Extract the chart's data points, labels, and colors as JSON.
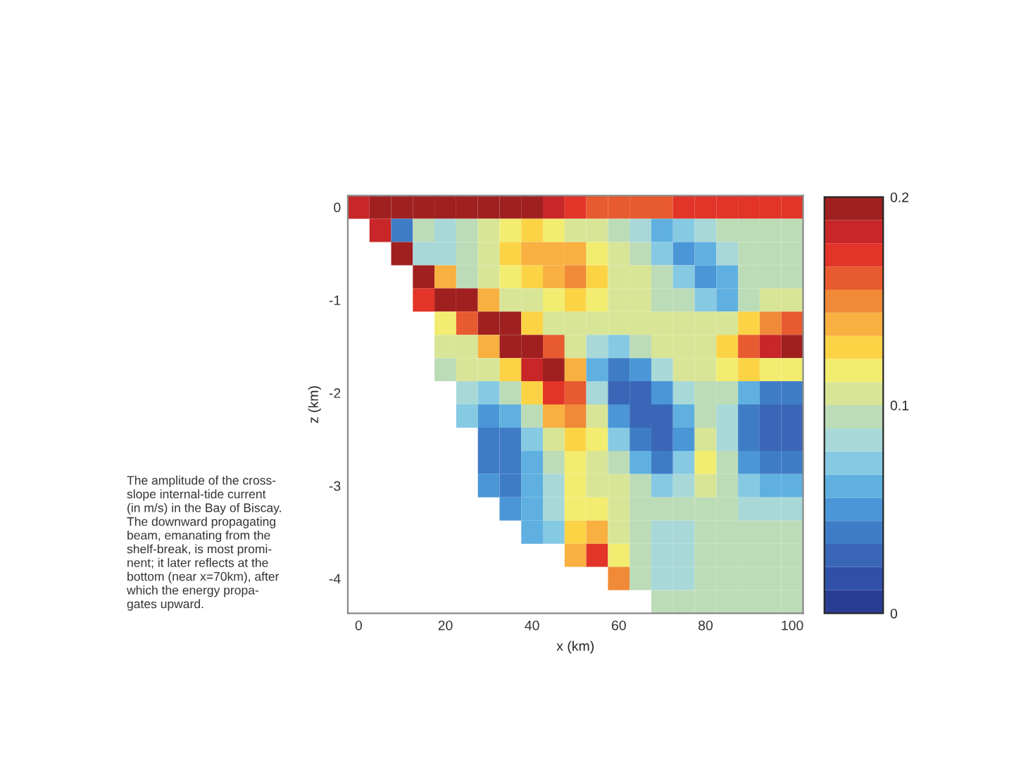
{
  "chart_data": {
    "type": "heatmap",
    "xlabel": "x (km)",
    "ylabel": "z (km)",
    "categories": [
      "0",
      null,
      null,
      null,
      "20",
      null,
      null,
      null,
      "40",
      null,
      null,
      null,
      "60",
      null,
      null,
      null,
      "80",
      null,
      null,
      null,
      "100"
    ],
    "y_categories": [
      "0",
      null,
      null,
      null,
      "-1",
      null,
      null,
      null,
      "-2",
      null,
      null,
      null,
      "-3",
      null,
      null,
      null,
      "-4",
      null
    ],
    "clim": [
      0,
      0.2
    ],
    "cticks": [
      0,
      0.1,
      0.2
    ],
    "colors": [
      "#2a3d95",
      "#3050a8",
      "#3a66b8",
      "#3f7cc6",
      "#4a96d6",
      "#5fb0e0",
      "#86c9e3",
      "#a8d8d8",
      "#bcdcb8",
      "#d8e596",
      "#f2ed70",
      "#fbd345",
      "#f8b040",
      "#f08a38",
      "#e85a30",
      "#e23428",
      "#c82628",
      "#a02020"
    ],
    "cells": [
      [
        0.18,
        0.19,
        0.2,
        0.19,
        0.2,
        0.2,
        0.2,
        0.2,
        0.19,
        0.18,
        0.17,
        0.16,
        0.16,
        0.16,
        0.16,
        0.17,
        0.17,
        0.17,
        0.17,
        0.17,
        0.17
      ],
      [
        null,
        0.18,
        0.04,
        0.09,
        0.08,
        0.09,
        0.11,
        0.12,
        0.13,
        0.12,
        0.11,
        0.1,
        0.09,
        0.08,
        0.06,
        0.07,
        0.08,
        0.09,
        0.09,
        0.09,
        0.09
      ],
      [
        null,
        null,
        0.19,
        0.08,
        0.08,
        0.09,
        0.11,
        0.13,
        0.14,
        0.14,
        0.14,
        0.12,
        0.1,
        0.09,
        0.07,
        0.05,
        0.06,
        0.08,
        0.09,
        0.09,
        0.09
      ],
      [
        null,
        null,
        null,
        0.19,
        0.14,
        0.09,
        0.1,
        0.12,
        0.13,
        0.14,
        0.15,
        0.13,
        0.11,
        0.1,
        0.09,
        0.07,
        0.05,
        0.06,
        0.09,
        0.09,
        0.09
      ],
      [
        null,
        null,
        null,
        0.17,
        0.19,
        0.19,
        0.14,
        0.1,
        0.11,
        0.12,
        0.13,
        0.12,
        0.11,
        0.1,
        0.09,
        0.09,
        0.07,
        0.06,
        0.09,
        0.1,
        0.1
      ],
      [
        null,
        null,
        null,
        null,
        0.12,
        0.16,
        0.2,
        0.19,
        0.13,
        0.1,
        0.1,
        0.11,
        0.11,
        0.11,
        0.1,
        0.1,
        0.1,
        0.11,
        0.13,
        0.15,
        0.16
      ],
      [
        null,
        null,
        null,
        null,
        0.1,
        0.11,
        0.14,
        0.19,
        0.2,
        0.16,
        0.1,
        0.08,
        0.07,
        0.09,
        0.1,
        0.11,
        0.11,
        0.13,
        0.16,
        0.18,
        0.19
      ],
      [
        null,
        null,
        null,
        null,
        0.09,
        0.1,
        0.11,
        0.13,
        0.18,
        0.19,
        0.14,
        0.06,
        0.04,
        0.05,
        0.08,
        0.1,
        0.11,
        0.12,
        0.13,
        0.12,
        0.12
      ],
      [
        null,
        null,
        null,
        null,
        null,
        0.08,
        0.07,
        0.09,
        0.13,
        0.17,
        0.16,
        0.08,
        0.03,
        0.03,
        0.05,
        0.08,
        0.09,
        0.09,
        0.06,
        0.04,
        0.04
      ],
      [
        null,
        null,
        null,
        null,
        null,
        0.07,
        0.05,
        0.06,
        0.09,
        0.14,
        0.15,
        0.11,
        0.05,
        0.03,
        0.03,
        0.06,
        0.09,
        0.08,
        0.04,
        0.03,
        0.03
      ],
      [
        null,
        null,
        null,
        null,
        null,
        null,
        0.04,
        0.04,
        0.07,
        0.11,
        0.13,
        0.12,
        0.07,
        0.04,
        0.03,
        0.05,
        0.11,
        0.08,
        0.04,
        0.03,
        0.03
      ],
      [
        null,
        null,
        null,
        null,
        null,
        null,
        0.04,
        0.035,
        0.06,
        0.09,
        0.12,
        0.11,
        0.09,
        0.06,
        0.04,
        0.07,
        0.12,
        0.09,
        0.05,
        0.04,
        0.04
      ],
      [
        null,
        null,
        null,
        null,
        null,
        null,
        0.05,
        0.04,
        0.06,
        0.08,
        0.12,
        0.11,
        0.1,
        0.09,
        0.07,
        0.08,
        0.11,
        0.09,
        0.07,
        0.06,
        0.06
      ],
      [
        null,
        null,
        null,
        null,
        null,
        null,
        null,
        0.05,
        0.06,
        0.08,
        0.12,
        0.12,
        0.1,
        0.09,
        0.09,
        0.09,
        0.09,
        0.09,
        0.08,
        0.08,
        0.08
      ],
      [
        null,
        null,
        null,
        null,
        null,
        null,
        null,
        null,
        0.06,
        0.07,
        0.13,
        0.14,
        0.11,
        0.09,
        0.08,
        0.08,
        0.09,
        0.09,
        0.09,
        0.09,
        0.09
      ],
      [
        null,
        null,
        null,
        null,
        null,
        null,
        null,
        null,
        null,
        null,
        0.14,
        0.17,
        0.12,
        0.09,
        0.08,
        0.08,
        0.09,
        0.09,
        0.09,
        0.09,
        0.09
      ],
      [
        null,
        null,
        null,
        null,
        null,
        null,
        null,
        null,
        null,
        null,
        null,
        null,
        0.15,
        0.09,
        0.08,
        0.08,
        0.09,
        0.09,
        0.09,
        0.09,
        0.09
      ],
      [
        null,
        null,
        null,
        null,
        null,
        null,
        null,
        null,
        null,
        null,
        null,
        null,
        null,
        null,
        0.09,
        0.09,
        0.09,
        0.09,
        0.09,
        0.09,
        0.09
      ]
    ],
    "annotations": [
      "The amplitude of the cross-\nslope internal-tide current\n(in m/s) in the Bay of Biscay.\nThe downward propagating\nbeam, emanating from the\nshelf-break, is most promi-\nnent; it later reflects at the\nbottom (near x=70km), after\nwhich the energy propa-\ngates upward."
    ]
  }
}
